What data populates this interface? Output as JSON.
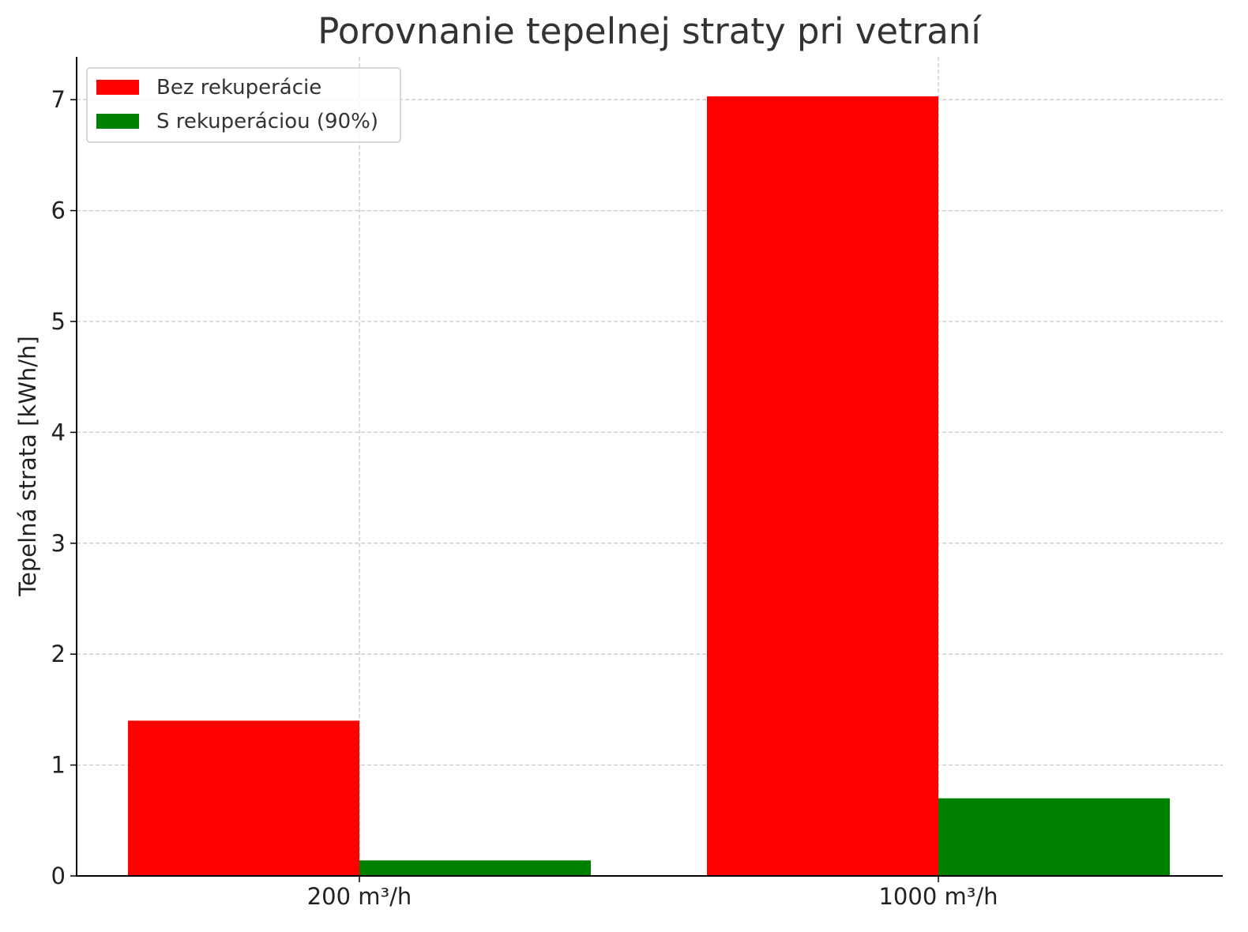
{
  "chart_data": {
    "type": "bar",
    "title": "Porovnanie tepelnej straty pri vetraní",
    "xlabel": "",
    "ylabel": "Tepelná strata [kWh/h]",
    "categories": [
      "200 m³/h",
      "1000 m³/h"
    ],
    "series": [
      {
        "name": "Bez rekuperácie",
        "values": [
          1.4,
          7.03
        ],
        "color": "#ff0000"
      },
      {
        "name": "S rekuperáciou (90%)",
        "values": [
          0.14,
          0.7
        ],
        "color": "#008000"
      }
    ],
    "ylim": [
      0,
      7.4
    ],
    "yticks": [
      0,
      1,
      2,
      3,
      4,
      5,
      6,
      7
    ],
    "grid": true,
    "legend_position": "top-left"
  }
}
